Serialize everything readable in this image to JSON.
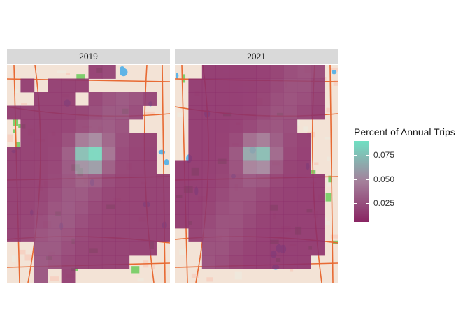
{
  "facets": [
    "2019",
    "2021"
  ],
  "legend": {
    "title": "Percent of Annual Trips",
    "ticks": [
      "0.075",
      "0.050",
      "0.025"
    ],
    "tick_values": [
      0.075,
      0.05,
      0.025
    ],
    "range": [
      0.005,
      0.09
    ],
    "color_low": "#892463",
    "color_mid": "#a4809b",
    "color_high": "#6fe0c3"
  },
  "colors": {
    "map_base": "#f3e3d6",
    "road": "#e86a33",
    "water": "#5fb4e6",
    "park": "#7fcf6e",
    "strip": "#d9d9d9"
  },
  "chart_data": {
    "type": "heatmap",
    "x_label": "",
    "y_label": "",
    "facet_variable": "year",
    "note_units": "percent of annual trips per grid cell"
  }
}
